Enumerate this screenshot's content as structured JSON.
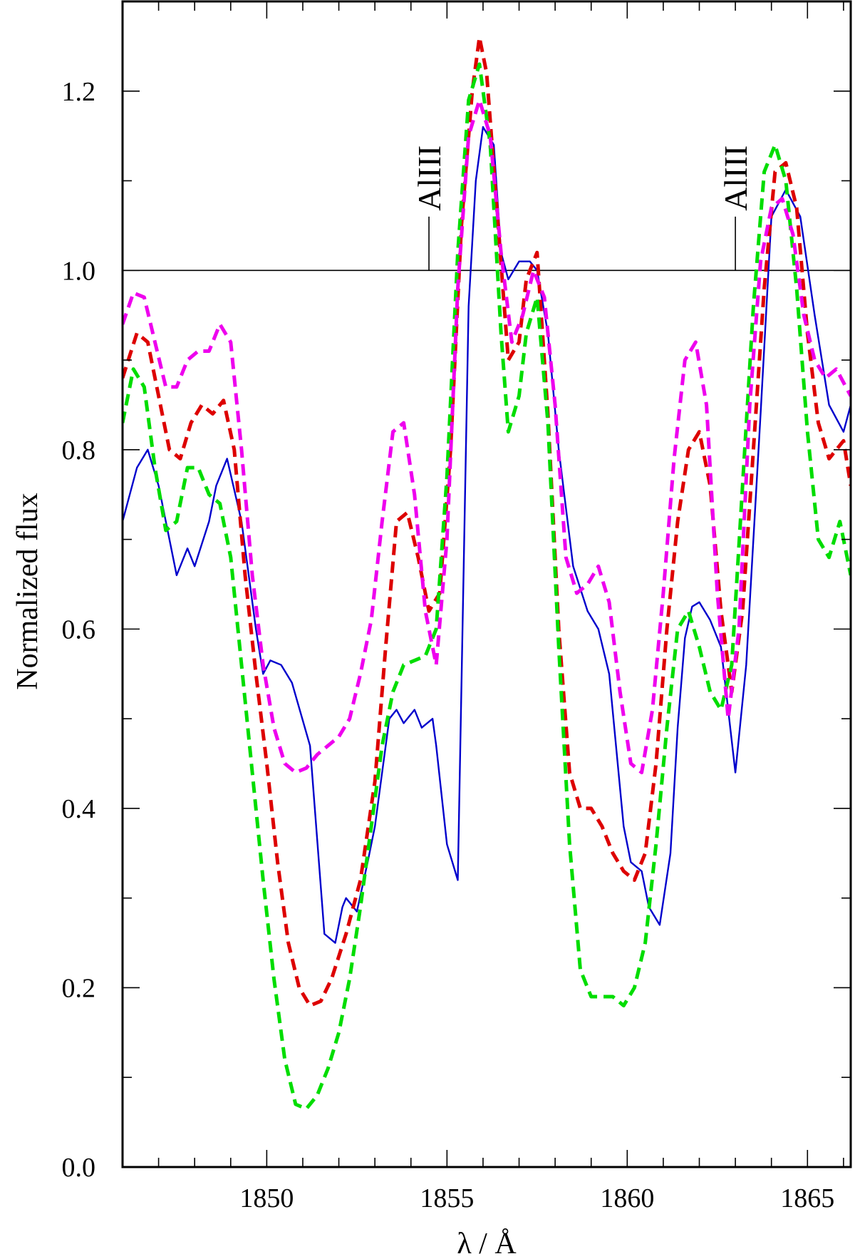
{
  "chart_data": {
    "type": "line",
    "xlabel": "λ / Å",
    "ylabel": "Normalized flux",
    "xlim": [
      1846.0,
      1866.2
    ],
    "ylim": [
      0.0,
      1.3
    ],
    "x_ticks": [
      1850,
      1855,
      1860,
      1865
    ],
    "x_tick_labels": [
      "1850",
      "1855",
      "1860",
      "1865"
    ],
    "x_minor_step": 1,
    "y_ticks": [
      0.0,
      0.2,
      0.4,
      0.6,
      0.8,
      1.0,
      1.2
    ],
    "y_tick_labels": [
      "0.0",
      "0.2",
      "0.4",
      "0.6",
      "0.8",
      "1.0",
      "1.2"
    ],
    "y_minor_step": 0.1,
    "reference_line": {
      "y": 1.0,
      "color": "#000000"
    },
    "annotations": [
      {
        "text": "AlIII",
        "x": 1854.5,
        "y_base": 1.0,
        "y_top": 1.06
      },
      {
        "text": "AlIII",
        "x": 1863.0,
        "y_base": 1.0,
        "y_top": 1.06
      }
    ],
    "series": [
      {
        "color": "#0000cc",
        "style": "solid",
        "x": [
          1846.0,
          1846.4,
          1846.7,
          1847.0,
          1847.3,
          1847.5,
          1847.8,
          1848.0,
          1848.4,
          1848.6,
          1848.9,
          1849.3,
          1849.7,
          1849.9,
          1850.1,
          1850.4,
          1850.7,
          1851.2,
          1851.6,
          1851.9,
          1852.1,
          1852.2,
          1852.5,
          1852.8,
          1853.0,
          1853.2,
          1853.4,
          1853.6,
          1853.8,
          1854.1,
          1854.3,
          1854.6,
          1854.7,
          1855.0,
          1855.3,
          1855.6,
          1855.8,
          1856.0,
          1856.3,
          1856.5,
          1856.7,
          1857.0,
          1857.3,
          1857.5,
          1857.8,
          1858.1,
          1858.5,
          1858.9,
          1859.2,
          1859.5,
          1859.9,
          1860.1,
          1860.4,
          1860.6,
          1860.9,
          1861.2,
          1861.4,
          1861.6,
          1861.8,
          1862.0,
          1862.3,
          1862.6,
          1863.0,
          1863.3,
          1863.7,
          1864.0,
          1864.4,
          1864.8,
          1865.2,
          1865.6,
          1866.0,
          1866.2
        ],
        "y": [
          0.72,
          0.78,
          0.8,
          0.76,
          0.7,
          0.66,
          0.69,
          0.67,
          0.72,
          0.76,
          0.79,
          0.72,
          0.6,
          0.55,
          0.565,
          0.56,
          0.54,
          0.47,
          0.26,
          0.25,
          0.29,
          0.3,
          0.285,
          0.34,
          0.38,
          0.44,
          0.5,
          0.51,
          0.495,
          0.51,
          0.49,
          0.5,
          0.47,
          0.36,
          0.32,
          0.96,
          1.1,
          1.16,
          1.14,
          1.02,
          0.99,
          1.01,
          1.01,
          1.0,
          0.93,
          0.8,
          0.67,
          0.62,
          0.6,
          0.55,
          0.38,
          0.34,
          0.33,
          0.29,
          0.27,
          0.35,
          0.49,
          0.59,
          0.625,
          0.63,
          0.61,
          0.58,
          0.44,
          0.56,
          0.84,
          1.06,
          1.09,
          1.06,
          0.95,
          0.85,
          0.82,
          0.85
        ]
      },
      {
        "color": "#dd0000",
        "style": "dashed",
        "x": [
          1846.0,
          1846.4,
          1846.7,
          1847.0,
          1847.3,
          1847.6,
          1847.9,
          1848.2,
          1848.5,
          1848.8,
          1849.1,
          1849.4,
          1849.7,
          1850.0,
          1850.3,
          1850.6,
          1850.9,
          1851.2,
          1851.5,
          1851.8,
          1852.2,
          1852.6,
          1853.0,
          1853.3,
          1853.6,
          1853.9,
          1854.2,
          1854.5,
          1854.8,
          1855.1,
          1855.4,
          1855.7,
          1855.9,
          1856.1,
          1856.4,
          1856.7,
          1857.0,
          1857.2,
          1857.5,
          1857.8,
          1858.1,
          1858.4,
          1858.7,
          1859.0,
          1859.3,
          1859.6,
          1859.9,
          1860.2,
          1860.5,
          1860.8,
          1861.1,
          1861.4,
          1861.7,
          1862.0,
          1862.3,
          1862.6,
          1862.9,
          1863.2,
          1863.5,
          1863.8,
          1864.1,
          1864.4,
          1864.7,
          1865.0,
          1865.3,
          1865.6,
          1866.0,
          1866.2
        ],
        "y": [
          0.88,
          0.93,
          0.92,
          0.86,
          0.8,
          0.79,
          0.83,
          0.85,
          0.84,
          0.855,
          0.8,
          0.66,
          0.55,
          0.45,
          0.34,
          0.25,
          0.2,
          0.18,
          0.185,
          0.21,
          0.26,
          0.32,
          0.43,
          0.58,
          0.72,
          0.73,
          0.68,
          0.62,
          0.64,
          0.8,
          1.05,
          1.2,
          1.26,
          1.22,
          1.06,
          0.9,
          0.92,
          0.99,
          1.02,
          0.84,
          0.6,
          0.44,
          0.4,
          0.4,
          0.38,
          0.35,
          0.33,
          0.32,
          0.35,
          0.45,
          0.6,
          0.72,
          0.8,
          0.82,
          0.76,
          0.62,
          0.53,
          0.62,
          0.8,
          0.98,
          1.11,
          1.12,
          1.07,
          0.93,
          0.83,
          0.79,
          0.81,
          0.76
        ]
      },
      {
        "color": "#00dd00",
        "style": "dashed",
        "x": [
          1846.0,
          1846.3,
          1846.6,
          1846.9,
          1847.2,
          1847.5,
          1847.8,
          1848.1,
          1848.4,
          1848.7,
          1849.0,
          1849.3,
          1849.6,
          1849.9,
          1850.2,
          1850.5,
          1850.8,
          1851.1,
          1851.4,
          1851.7,
          1852.0,
          1852.3,
          1852.6,
          1852.9,
          1853.2,
          1853.5,
          1853.8,
          1854.1,
          1854.4,
          1854.7,
          1855.0,
          1855.3,
          1855.6,
          1855.9,
          1856.2,
          1856.5,
          1856.7,
          1857.0,
          1857.2,
          1857.5,
          1857.8,
          1858.1,
          1858.4,
          1858.7,
          1859.0,
          1859.3,
          1859.6,
          1859.9,
          1860.2,
          1860.5,
          1860.8,
          1861.1,
          1861.4,
          1861.7,
          1862.0,
          1862.3,
          1862.6,
          1862.9,
          1863.2,
          1863.5,
          1863.8,
          1864.1,
          1864.4,
          1864.7,
          1865.0,
          1865.3,
          1865.6,
          1865.9,
          1866.2
        ],
        "y": [
          0.83,
          0.89,
          0.87,
          0.78,
          0.71,
          0.72,
          0.78,
          0.78,
          0.75,
          0.74,
          0.68,
          0.56,
          0.44,
          0.32,
          0.21,
          0.12,
          0.07,
          0.065,
          0.08,
          0.11,
          0.15,
          0.21,
          0.29,
          0.38,
          0.47,
          0.53,
          0.56,
          0.565,
          0.57,
          0.6,
          0.77,
          1.02,
          1.19,
          1.23,
          1.14,
          0.93,
          0.82,
          0.86,
          0.93,
          0.97,
          0.83,
          0.58,
          0.36,
          0.22,
          0.19,
          0.19,
          0.19,
          0.18,
          0.2,
          0.25,
          0.36,
          0.49,
          0.6,
          0.62,
          0.58,
          0.53,
          0.51,
          0.56,
          0.76,
          0.96,
          1.11,
          1.14,
          1.1,
          0.98,
          0.82,
          0.7,
          0.68,
          0.72,
          0.66
        ]
      },
      {
        "color": "#ee00ee",
        "style": "dashed",
        "x": [
          1846.0,
          1846.3,
          1846.6,
          1846.9,
          1847.2,
          1847.5,
          1847.8,
          1848.1,
          1848.4,
          1848.7,
          1849.0,
          1849.3,
          1849.6,
          1849.9,
          1850.2,
          1850.5,
          1850.8,
          1851.1,
          1851.4,
          1851.7,
          1852.0,
          1852.3,
          1852.6,
          1852.9,
          1853.2,
          1853.5,
          1853.8,
          1854.1,
          1854.4,
          1854.7,
          1855.0,
          1855.3,
          1855.6,
          1855.9,
          1856.2,
          1856.5,
          1856.8,
          1857.1,
          1857.4,
          1857.7,
          1858.0,
          1858.3,
          1858.6,
          1858.9,
          1859.2,
          1859.5,
          1859.8,
          1860.1,
          1860.4,
          1860.7,
          1861.0,
          1861.3,
          1861.6,
          1861.9,
          1862.2,
          1862.5,
          1862.8,
          1863.1,
          1863.4,
          1863.7,
          1864.0,
          1864.3,
          1864.6,
          1864.9,
          1865.2,
          1865.5,
          1865.8,
          1866.2
        ],
        "y": [
          0.94,
          0.975,
          0.97,
          0.92,
          0.87,
          0.87,
          0.9,
          0.91,
          0.91,
          0.94,
          0.92,
          0.8,
          0.66,
          0.56,
          0.49,
          0.45,
          0.44,
          0.445,
          0.46,
          0.47,
          0.48,
          0.5,
          0.55,
          0.61,
          0.72,
          0.82,
          0.83,
          0.75,
          0.62,
          0.56,
          0.7,
          0.98,
          1.15,
          1.19,
          1.15,
          1.02,
          0.92,
          0.95,
          1.0,
          0.97,
          0.85,
          0.68,
          0.64,
          0.65,
          0.67,
          0.63,
          0.53,
          0.45,
          0.44,
          0.51,
          0.64,
          0.79,
          0.9,
          0.92,
          0.85,
          0.64,
          0.5,
          0.6,
          0.85,
          1.01,
          1.07,
          1.08,
          1.04,
          0.95,
          0.9,
          0.88,
          0.89,
          0.86
        ]
      }
    ]
  }
}
